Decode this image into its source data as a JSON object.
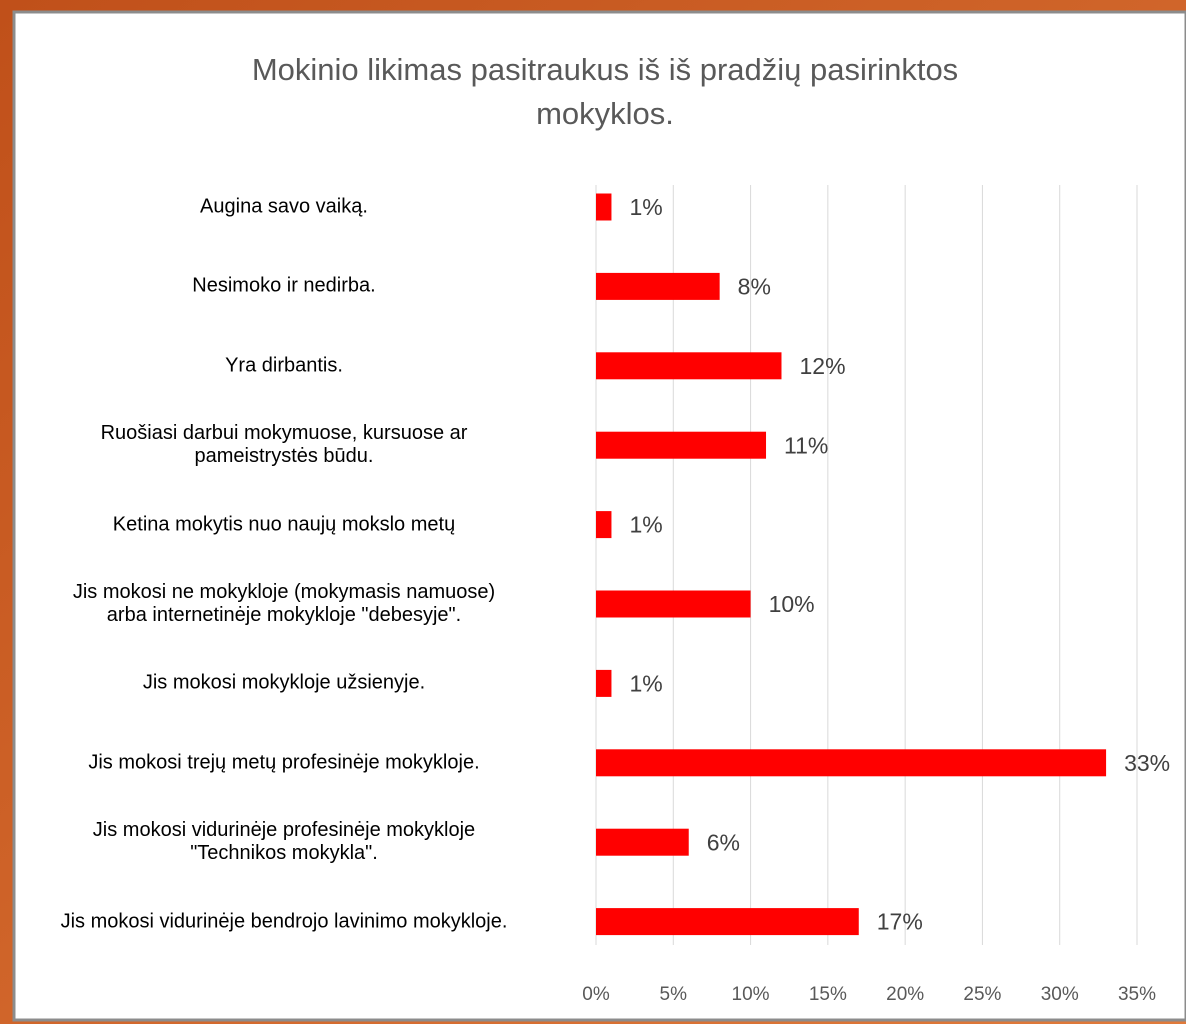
{
  "chart_data": {
    "type": "bar",
    "orientation": "horizontal",
    "title": "Mokinio likimas pasitraukus iš iš pradžių pasirinktos\nmokyklos.",
    "categories": [
      "Augina savo vaiką.",
      "Nesimoko ir nedirba.",
      "Yra dirbantis.",
      "Ruošiasi darbui mokymuose, kursuose ar\npameistrystės būdu.",
      "Ketina mokytis nuo naujų mokslo metų",
      "Jis mokosi ne mokykloje (mokymasis namuose)\narba internetinėje mokykloje \"debesyje\".",
      "Jis mokosi mokykloje užsienyje.",
      "Jis mokosi trejų metų profesinėje mokykloje.",
      "Jis mokosi vidurinėje profesinėje mokykloje\n\"Technikos mokykla\".",
      "Jis mokosi vidurinėje bendrojo lavinimo mokykloje."
    ],
    "values": [
      1,
      8,
      12,
      11,
      1,
      10,
      1,
      33,
      6,
      17
    ],
    "value_labels": [
      "1%",
      "8%",
      "12%",
      "11%",
      "1%",
      "10%",
      "1%",
      "33%",
      "6%",
      "17%"
    ],
    "color": "#ff0000",
    "xlim": [
      0,
      35
    ],
    "xticks": [
      {
        "value": 0,
        "label": "0%"
      },
      {
        "value": 5,
        "label": "5%"
      },
      {
        "value": 10,
        "label": "10%"
      },
      {
        "value": 15,
        "label": "15%"
      },
      {
        "value": 20,
        "label": "20%"
      },
      {
        "value": 25,
        "label": "25%"
      },
      {
        "value": 30,
        "label": "30%"
      },
      {
        "value": 35,
        "label": "35%"
      }
    ],
    "grid": true
  }
}
